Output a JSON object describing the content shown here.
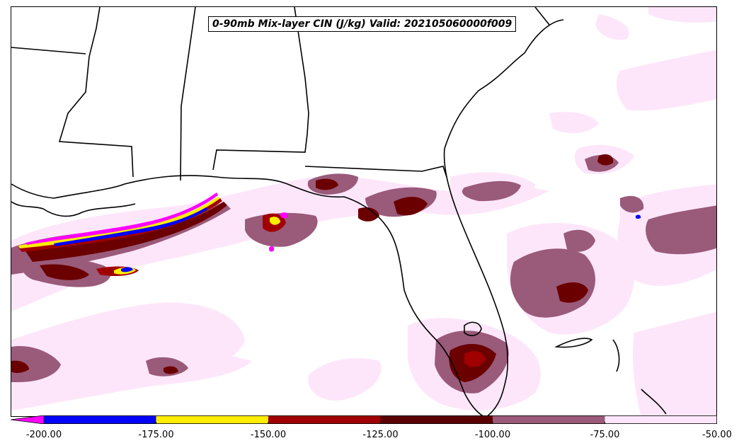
{
  "title": "0-90mb Mix-layer CIN (J/kg) Valid: 202105060000f009",
  "colorbar": {
    "colors": [
      "#ff00ff",
      "#0000ff",
      "#ffee00",
      "#a00000",
      "#5a0000",
      "#9a5a7a",
      "#fde6fa"
    ],
    "ticks": [
      "-200.00",
      "-175.00",
      "-150.00",
      "-125.00",
      "-100.00",
      "-75.00",
      "-50.00"
    ]
  },
  "map": {
    "fill_colors": {
      "light": "#fde6fa",
      "mauve": "#9a5a7a",
      "darkred": "#6a0000",
      "red": "#a00000",
      "yellow": "#ffee00",
      "blue": "#0000ff",
      "magenta": "#ff00ff"
    }
  }
}
